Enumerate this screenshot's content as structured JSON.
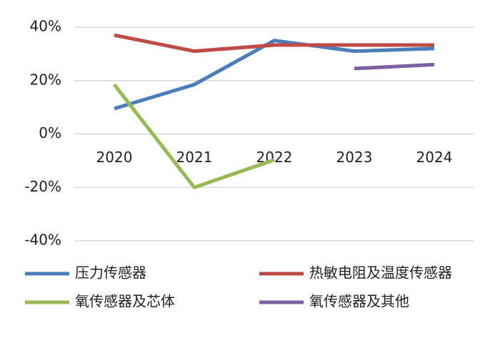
{
  "chart_data": {
    "type": "line",
    "categories": [
      "2020",
      "2021",
      "2022",
      "2023",
      "2024"
    ],
    "series": [
      {
        "name": "压力传感器",
        "color": "#4a7ebb",
        "values": [
          9.5,
          18.5,
          35,
          31,
          32
        ]
      },
      {
        "name": "热敏电阻及温度传感器",
        "color": "#be4b48",
        "values": [
          37,
          31,
          33.3,
          33.3,
          33.3
        ]
      },
      {
        "name": "氧传感器及芯体",
        "color": "#98b954",
        "values": [
          18.5,
          -20,
          -9.7,
          null,
          null
        ]
      },
      {
        "name": "氧传感器及其他",
        "color": "#7d60a0",
        "values": [
          null,
          null,
          null,
          24.5,
          26
        ]
      }
    ],
    "ylim": [
      -40,
      40
    ],
    "yticks": [
      {
        "value": -40,
        "label": "-40%"
      },
      {
        "value": -20,
        "label": "-20%"
      },
      {
        "value": 0,
        "label": "0%"
      },
      {
        "value": 20,
        "label": "20%"
      },
      {
        "value": 40,
        "label": "40%"
      }
    ],
    "grid": true
  }
}
